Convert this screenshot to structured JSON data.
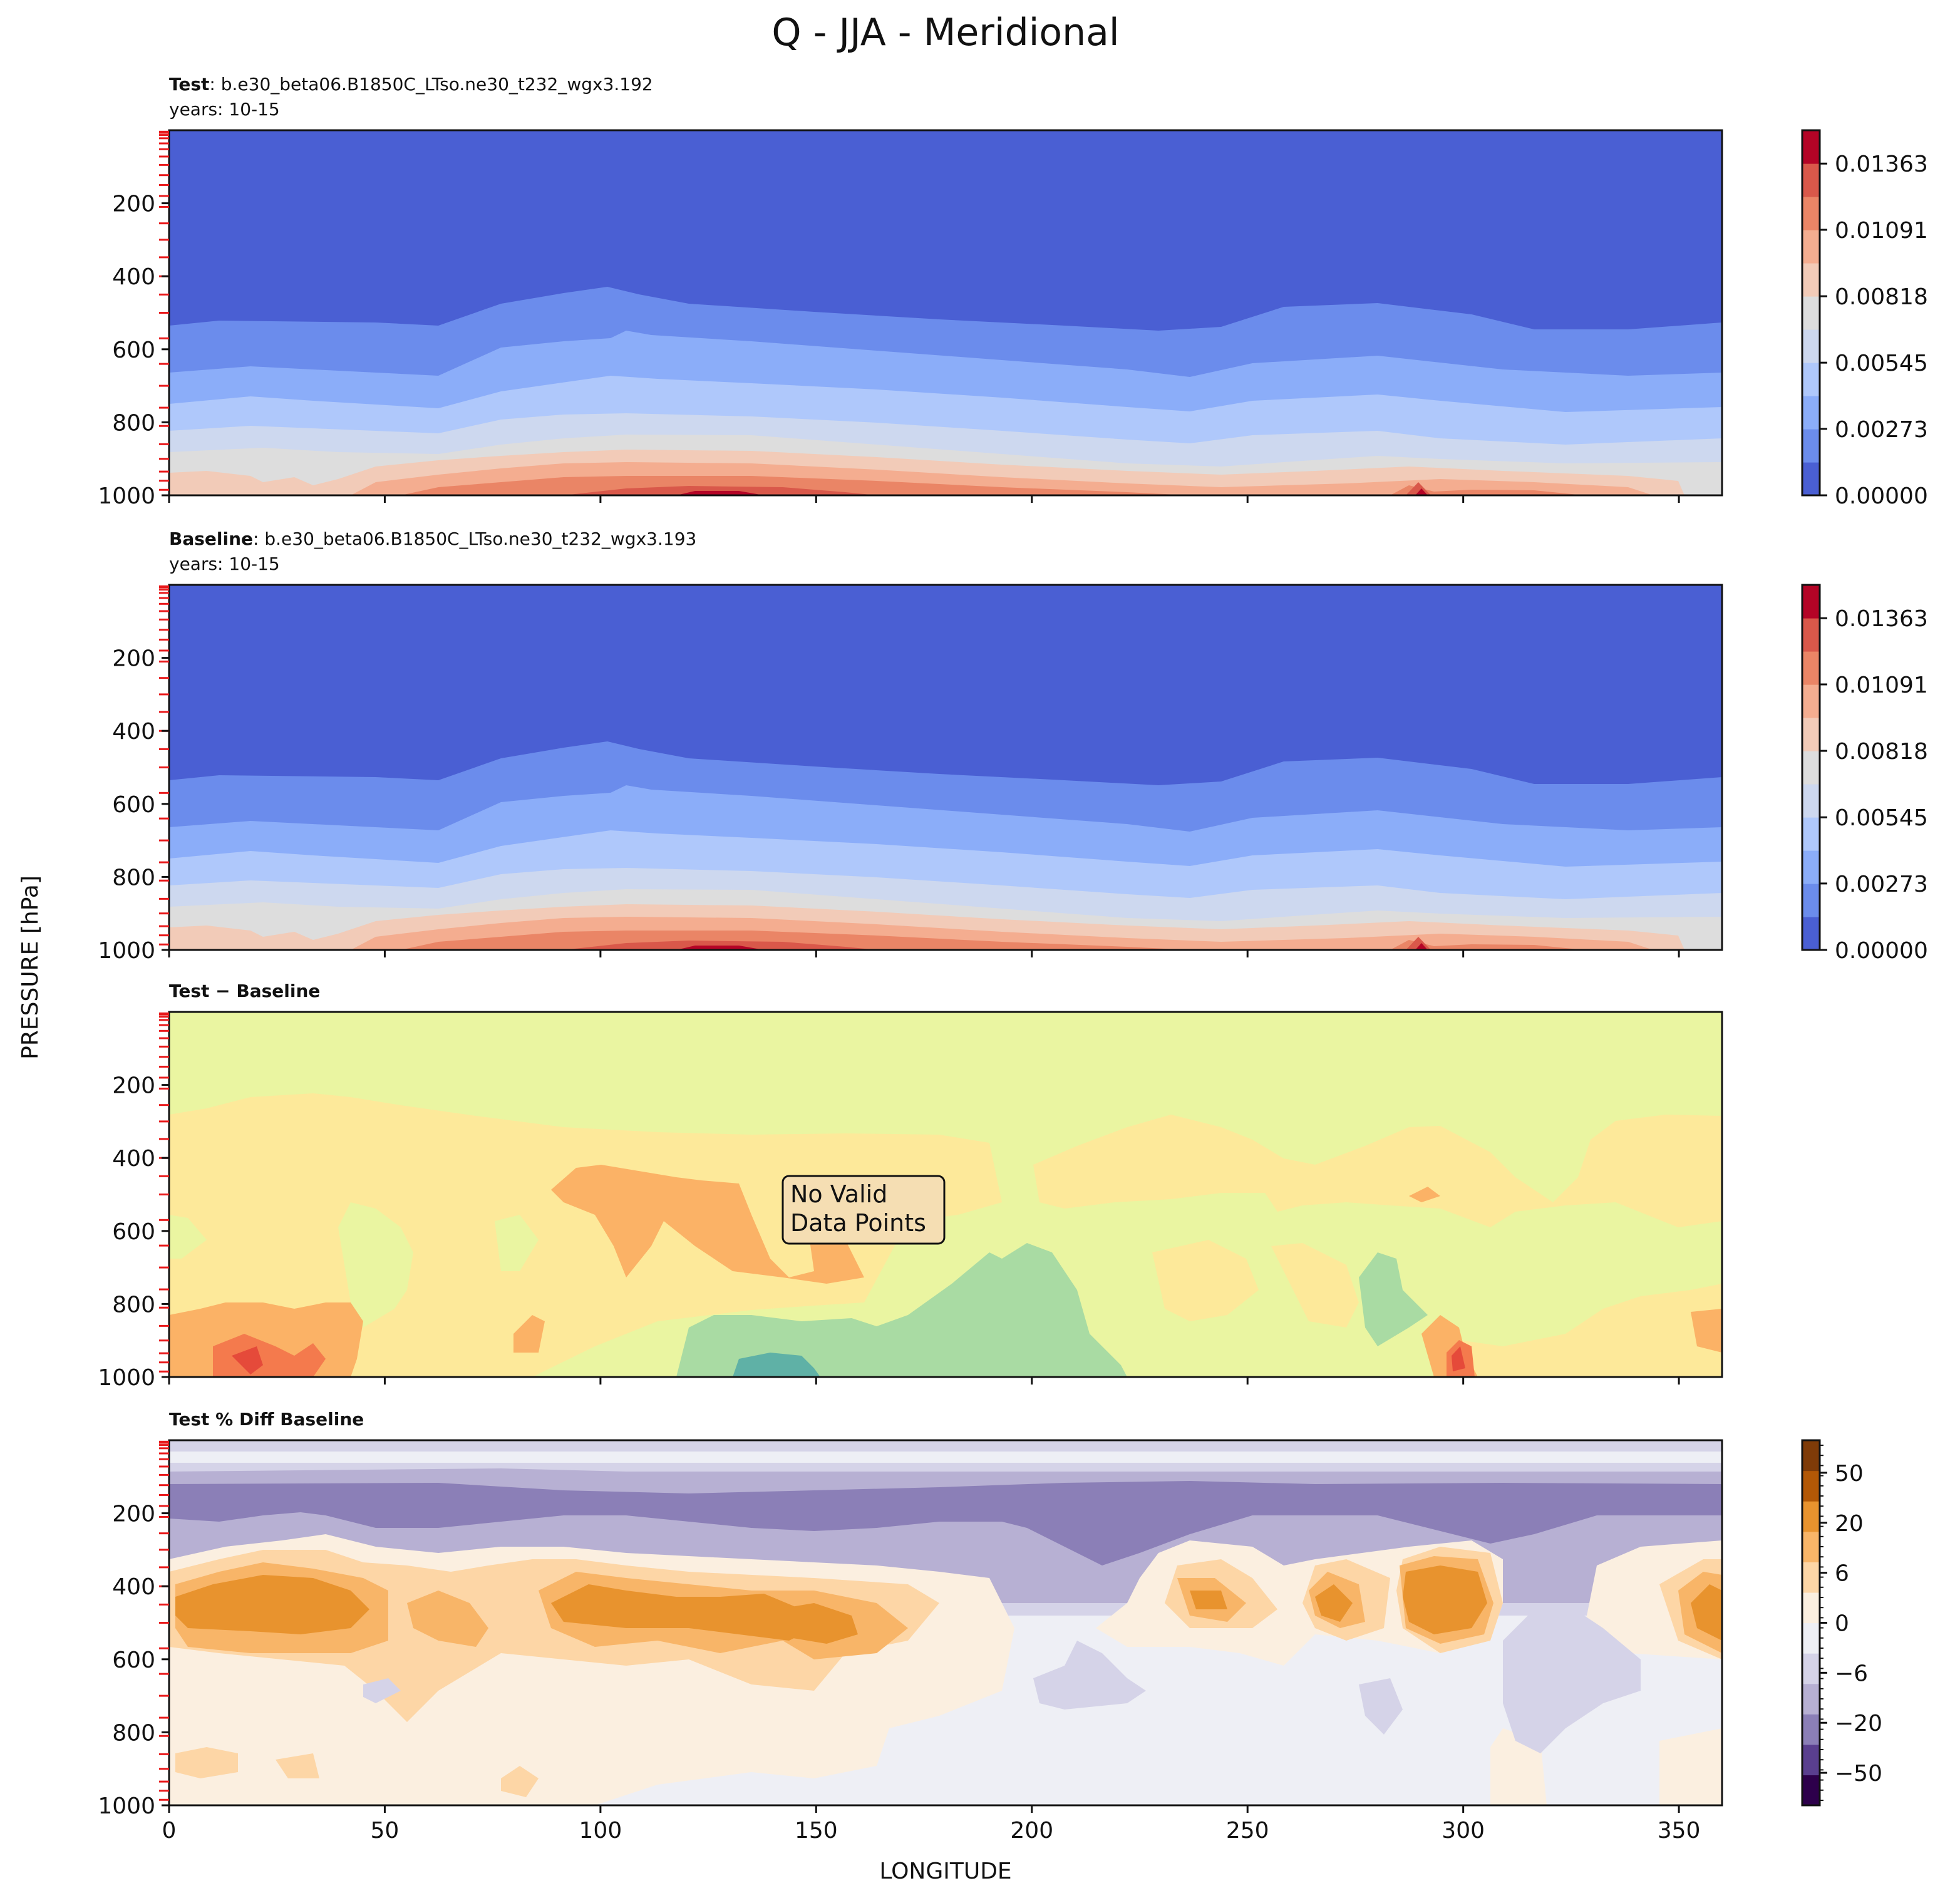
{
  "chart_data": {
    "title": "Q - JJA - Meridional",
    "ylabel": "PRESSURE [hPa]",
    "xlabel": "LONGITUDE",
    "x_range": [
      0,
      360
    ],
    "y_range": [
      0,
      1000
    ],
    "x_ticks": [
      "0",
      "50",
      "100",
      "150",
      "200",
      "250",
      "300",
      "350"
    ],
    "x_tick_values": [
      0,
      50,
      100,
      150,
      200,
      250,
      300,
      350
    ],
    "y_ticks": [
      "200",
      "400",
      "600",
      "800",
      "1000"
    ],
    "y_tick_values": [
      200,
      400,
      600,
      800,
      1000
    ],
    "model_levels_hPa": [
      4,
      7,
      13,
      22,
      36,
      52,
      72,
      95,
      123,
      150,
      180,
      210,
      255,
      300,
      348,
      400,
      450,
      500,
      570,
      640,
      700,
      760,
      810,
      860,
      900,
      935,
      960,
      985
    ],
    "panels": [
      {
        "type": "contourf",
        "name": "test",
        "label_bold": "Test",
        "label_rest": ": b.e30_beta06.B1850C_LTso.ne30_t232_wgx3.192",
        "years": "years: 10-15",
        "colormap": "coolwarm",
        "colorbar_ticks": [
          "0.00000",
          "0.00273",
          "0.00545",
          "0.00818",
          "0.01091",
          "0.01363"
        ],
        "colorbar_values": [
          0.0,
          0.00273,
          0.00545,
          0.00818,
          0.01091,
          0.01363
        ]
      },
      {
        "type": "contourf",
        "name": "baseline",
        "label_bold": "Baseline",
        "label_rest": ": b.e30_beta06.B1850C_LTso.ne30_t232_wgx3.193",
        "years": "years: 10-15",
        "colormap": "coolwarm",
        "colorbar_ticks": [
          "0.00000",
          "0.00273",
          "0.00545",
          "0.00818",
          "0.01091",
          "0.01363"
        ],
        "colorbar_values": [
          0.0,
          0.00273,
          0.00545,
          0.00818,
          0.01091,
          0.01363
        ]
      },
      {
        "type": "contourf",
        "name": "difference",
        "label_bold": "Test − Baseline",
        "annotation": [
          "No Valid",
          "Data Points"
        ],
        "colormap": "Spectral"
      },
      {
        "type": "contourf",
        "name": "percent-difference",
        "label_bold": "Test % Diff Baseline",
        "colormap": "PuOr_r",
        "colorbar_ticks": [
          "50",
          "20",
          "6",
          "0",
          "−6",
          "−20",
          "−50"
        ],
        "colorbar_values": [
          50,
          20,
          6,
          0,
          -6,
          -20,
          -50
        ]
      }
    ]
  },
  "colors": {
    "coolwarm": [
      "#4a5fd3",
      "#6b8cec",
      "#8badf9",
      "#afc8fb",
      "#cdd8ef",
      "#dddddd",
      "#f2cbb8",
      "#f4ad90",
      "#ea8566",
      "#d9584a",
      "#b40426"
    ],
    "spectral": [
      "#2b8a9c",
      "#5fb1a6",
      "#a9dba3",
      "#eaf5a1",
      "#fde99a",
      "#fbb266",
      "#f47a4d",
      "#e54a3a"
    ],
    "puor": [
      "#2d004b",
      "#5a3f8f",
      "#8b7fb7",
      "#b7b0d3",
      "#d5d3e8",
      "#eeeff5",
      "#fbefe0",
      "#fdd6a6",
      "#f8b568",
      "#e8932e",
      "#b35806",
      "#7f3b08"
    ],
    "level_mark": "#e8191b"
  }
}
